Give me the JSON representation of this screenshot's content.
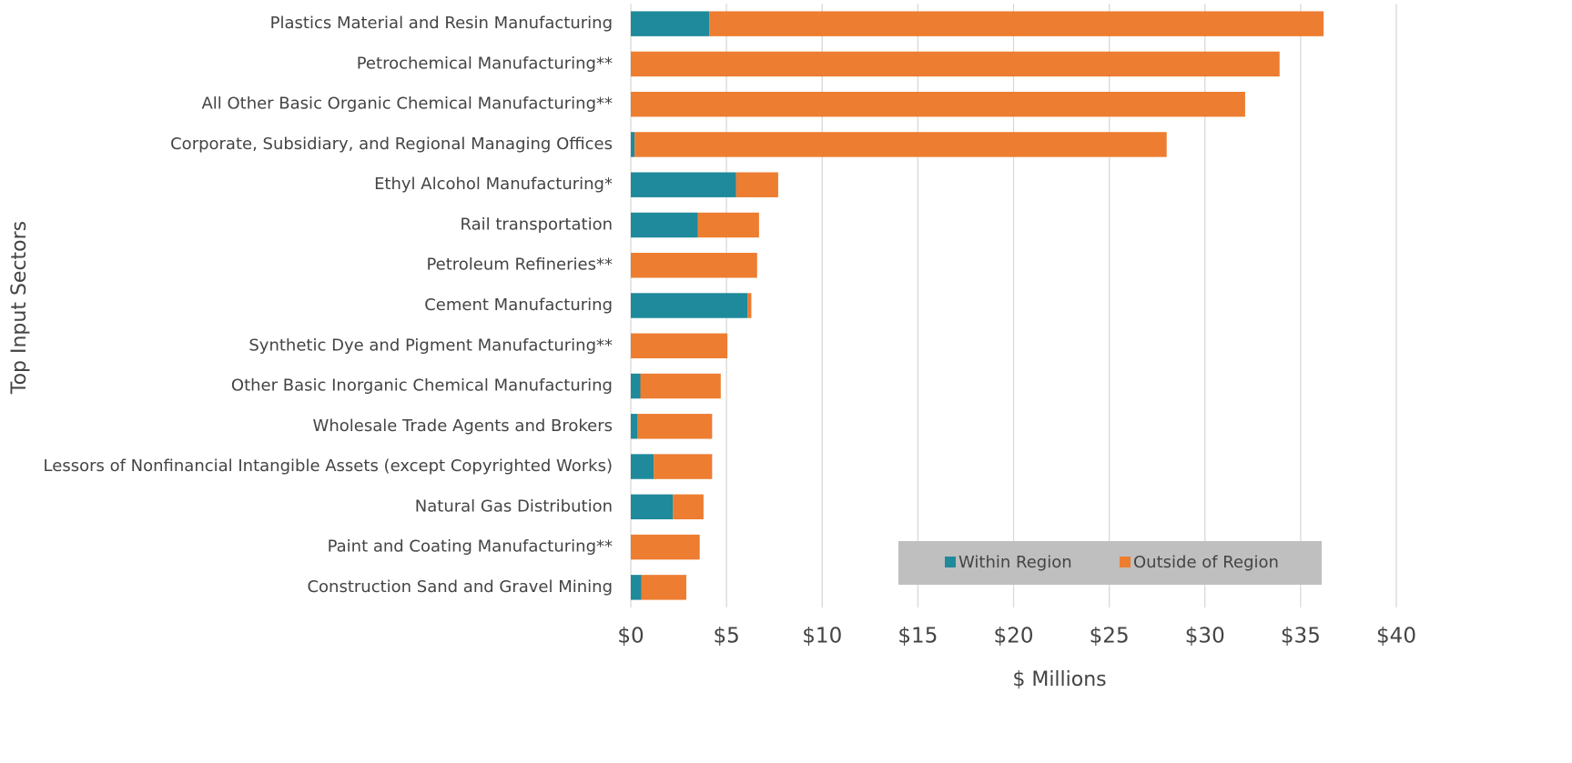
{
  "chart_data": {
    "type": "bar",
    "orientation": "horizontal",
    "stacked": true,
    "x_label": "$ Millions",
    "y_label": "Top Input Sectors",
    "categories": [
      "Plastics Material and Resin Manufacturing",
      "Petrochemical Manufacturing**",
      "All Other Basic Organic Chemical Manufacturing**",
      "Corporate, Subsidiary, and Regional Managing Offices",
      "Ethyl Alcohol Manufacturing*",
      "Rail transportation",
      "Petroleum Refineries**",
      "Cement Manufacturing",
      "Synthetic Dye and Pigment Manufacturing**",
      "Other Basic Inorganic Chemical Manufacturing",
      "Wholesale Trade Agents and Brokers",
      "Lessors of Nonfinancial Intangible Assets (except Copyrighted Works)",
      "Natural Gas Distribution",
      "Paint and Coating Manufacturing**",
      "Construction Sand and Gravel Mining"
    ],
    "series": [
      {
        "name": "Within Region",
        "color": "#1f8a9b",
        "values": [
          4.1,
          0,
          0,
          0.2,
          5.5,
          3.5,
          0,
          6.1,
          0,
          0.5,
          0.35,
          1.2,
          2.2,
          0,
          0.55
        ]
      },
      {
        "name": "Outside of Region",
        "color": "#ed7d31",
        "values": [
          32.1,
          33.9,
          32.1,
          27.8,
          2.2,
          3.2,
          6.6,
          0.2,
          5.05,
          4.2,
          3.9,
          3.05,
          1.6,
          3.6,
          2.35
        ]
      }
    ],
    "xlim": [
      0,
      40
    ],
    "xticks": [
      {
        "value": 0,
        "label": "$0"
      },
      {
        "value": 5,
        "label": "$5"
      },
      {
        "value": 10,
        "label": "$10"
      },
      {
        "value": 15,
        "label": "$15"
      },
      {
        "value": 20,
        "label": "$20"
      },
      {
        "value": 25,
        "label": "$25"
      },
      {
        "value": 30,
        "label": "$30"
      },
      {
        "value": 35,
        "label": "$35"
      },
      {
        "value": 40,
        "label": "$40"
      }
    ],
    "grid": true,
    "legend": "lower right"
  }
}
